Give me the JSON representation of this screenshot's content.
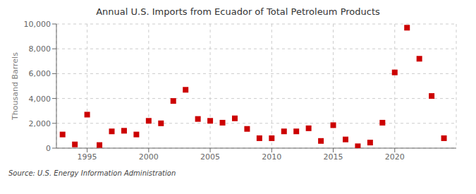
{
  "chart_data": {
    "type": "scatter",
    "title": "Annual U.S. Imports from Ecuador of Total Petroleum Products",
    "ylabel": "Thousand Barrels",
    "source": "Source: U.S. Energy Information Administration",
    "color": "#cc0000",
    "marker": "square",
    "grid": true,
    "xlim": [
      1992.5,
      2025
    ],
    "ylim": [
      0,
      10000
    ],
    "xticks": [
      1995,
      2000,
      2005,
      2010,
      2015,
      2020
    ],
    "yticks": [
      0,
      {
        "value": 2000,
        "label": "2,000"
      },
      {
        "value": 4000,
        "label": "4,000"
      },
      {
        "value": 6000,
        "label": "6,000"
      },
      {
        "value": 8000,
        "label": "8,000"
      },
      {
        "value": 10000,
        "label": "10,000"
      }
    ],
    "x": [
      1993,
      1994,
      1995,
      1996,
      1997,
      1998,
      1999,
      2000,
      2001,
      2002,
      2003,
      2004,
      2005,
      2006,
      2007,
      2008,
      2009,
      2010,
      2011,
      2012,
      2013,
      2014,
      2015,
      2016,
      2017,
      2018,
      2019,
      2020,
      2021,
      2022,
      2023,
      2024
    ],
    "values": [
      1100,
      300,
      2700,
      250,
      1350,
      1400,
      1100,
      2200,
      2000,
      3800,
      4700,
      2350,
      2200,
      2050,
      2400,
      1550,
      800,
      800,
      1350,
      1350,
      1600,
      580,
      1850,
      700,
      150,
      450,
      2050,
      6100,
      9700,
      7200,
      4200,
      800
    ]
  }
}
